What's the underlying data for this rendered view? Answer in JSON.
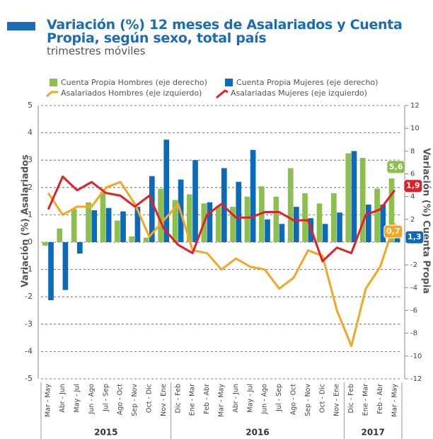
{
  "chart_data": {
    "type": "bar-line",
    "title": "Variación (%) 12 meses de Asalariados y Cuenta Propia, según sexo, total país",
    "subtitle": "trimestres móviles",
    "ylabel": "Variación (%) Asalariados",
    "y2label": "Variación (%) Cuenta Propia",
    "categories": [
      "Mar - May",
      "Abr - Jun",
      "May - Jul",
      "Jun - Ago",
      "Jul - Sep",
      "Ago - Oct",
      "Sep - Nov",
      "Oct - Dic",
      "Nov - Ene",
      "Dic - Feb",
      "Ene - Mar",
      "Feb - Abr",
      "Mar - May",
      "Abr - Jun",
      "May - Jul",
      "Jun - Ago",
      "Jul - Sep",
      "Ago - Oct",
      "Sep - Nov",
      "Oct - Dic",
      "Nov - Ene",
      "Dic - Feb",
      "Ene - Mar",
      "Feb - Abr",
      "Mar - May"
    ],
    "years": [
      "2015",
      "2016",
      "2017"
    ],
    "ylim": [
      -5,
      5
    ],
    "yticks": [
      -5,
      -4,
      -3,
      -2,
      -1,
      0,
      1,
      2,
      3,
      4,
      5
    ],
    "y2lim": [
      -12,
      12
    ],
    "y2ticks": [
      -12,
      -10,
      -8,
      -6,
      -4,
      -2,
      0,
      2,
      4,
      6,
      8,
      10,
      12
    ],
    "grid": true,
    "series": [
      {
        "name": "Cuenta Propia Hombres (eje derecho)",
        "type": "bar",
        "axis": "y2",
        "color": "#8cbf4e",
        "values": [
          -0.3,
          1.2,
          2.9,
          3.5,
          4.4,
          1.9,
          0.5,
          0.4,
          4.7,
          3.7,
          4.2,
          3.4,
          3.2,
          3.1,
          4.0,
          4.9,
          4.0,
          6.5,
          4.3,
          3.4,
          4.3,
          7.8,
          7.4,
          4.7,
          5.6
        ],
        "value_labels": [
          null,
          null,
          null,
          null,
          null,
          null,
          null,
          null,
          null,
          null,
          null,
          null,
          null,
          null,
          null,
          null,
          null,
          null,
          null,
          null,
          null,
          null,
          null,
          null,
          "5,6"
        ]
      },
      {
        "name": "Cuenta Propia Mujeres (eje derecho)",
        "type": "bar",
        "axis": "y2",
        "color": "#0d6ab8",
        "values": [
          -5.1,
          -4.2,
          -1.0,
          2.8,
          3.0,
          2.7,
          3.1,
          5.8,
          9.0,
          5.5,
          7.2,
          3.5,
          6.5,
          5.3,
          8.1,
          2.0,
          1.6,
          3.1,
          2.1,
          1.6,
          2.6,
          8.0,
          3.3,
          3.3,
          1.3
        ],
        "value_labels": [
          null,
          null,
          null,
          null,
          null,
          null,
          null,
          null,
          null,
          null,
          null,
          null,
          null,
          null,
          null,
          null,
          null,
          null,
          null,
          null,
          null,
          null,
          null,
          null,
          "1,3"
        ]
      },
      {
        "name": "Asalariados Hombres (eje izquierdo)",
        "type": "line",
        "color": "#f5a623",
        "values": [
          1.8,
          1.0,
          1.3,
          1.3,
          2.0,
          2.2,
          1.4,
          0.2,
          0.8,
          1.4,
          -0.3,
          -0.4,
          -1.0,
          -0.6,
          -0.9,
          -1.0,
          -1.7,
          -1.3,
          -0.3,
          -0.5,
          -2.5,
          -3.8,
          -1.7,
          -0.9,
          0.7
        ],
        "value_labels": [
          null,
          null,
          null,
          null,
          null,
          null,
          null,
          null,
          null,
          null,
          null,
          null,
          null,
          null,
          null,
          null,
          null,
          null,
          null,
          null,
          null,
          null,
          null,
          null,
          "0,7"
        ]
      },
      {
        "name": "Asalariadas Mujeres (eje izquierdo)",
        "type": "line",
        "color": "#e3202a",
        "values": [
          1.2,
          2.4,
          1.9,
          2.2,
          1.8,
          1.7,
          1.3,
          1.7,
          0.5,
          -0.1,
          -0.4,
          1.0,
          1.4,
          0.9,
          0.9,
          1.1,
          1.1,
          0.8,
          0.8,
          -0.7,
          -0.2,
          -0.4,
          1.0,
          1.2,
          1.9
        ],
        "value_labels": [
          null,
          null,
          null,
          null,
          null,
          null,
          null,
          null,
          null,
          null,
          null,
          null,
          null,
          null,
          null,
          null,
          null,
          null,
          null,
          null,
          null,
          null,
          null,
          null,
          "1,9"
        ]
      }
    ]
  }
}
